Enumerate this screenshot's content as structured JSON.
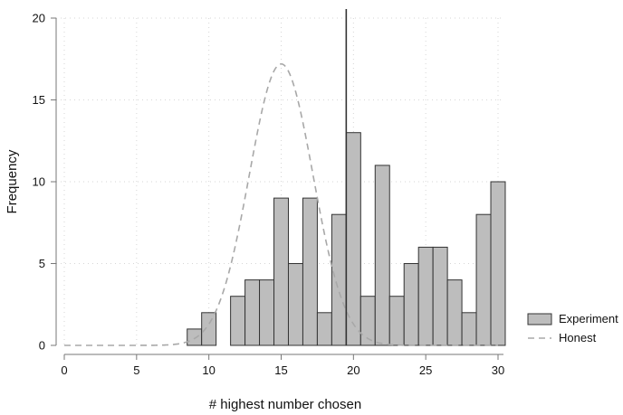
{
  "chart_data": {
    "type": "bar",
    "xlabel": "# highest number chosen",
    "ylabel": "Frequency",
    "xlim": [
      0,
      30
    ],
    "ylim": [
      0,
      20
    ],
    "x_ticks": [
      0,
      5,
      10,
      15,
      20,
      25,
      30
    ],
    "y_ticks": [
      0,
      5,
      10,
      15,
      20
    ],
    "grid": true,
    "legend_position": "bottom-right",
    "series": [
      {
        "name": "Experiment",
        "type": "bar",
        "color": "#bdbdbd",
        "x": [
          9,
          10,
          12,
          13,
          14,
          15,
          16,
          17,
          18,
          19,
          20,
          21,
          22,
          23,
          24,
          25,
          26,
          27,
          28,
          29,
          30
        ],
        "values": [
          1,
          2,
          3,
          4,
          4,
          9,
          5,
          9,
          2,
          8,
          13,
          3,
          11,
          3,
          5,
          6,
          6,
          4,
          2,
          8,
          10
        ]
      },
      {
        "name": "Honest",
        "type": "line",
        "style": "dashed",
        "color": "#a8a8a8",
        "mean": 15,
        "sd": 2.2,
        "peak": 17.2
      }
    ],
    "reference_line": {
      "x": 19.5,
      "color": "#333333"
    }
  }
}
